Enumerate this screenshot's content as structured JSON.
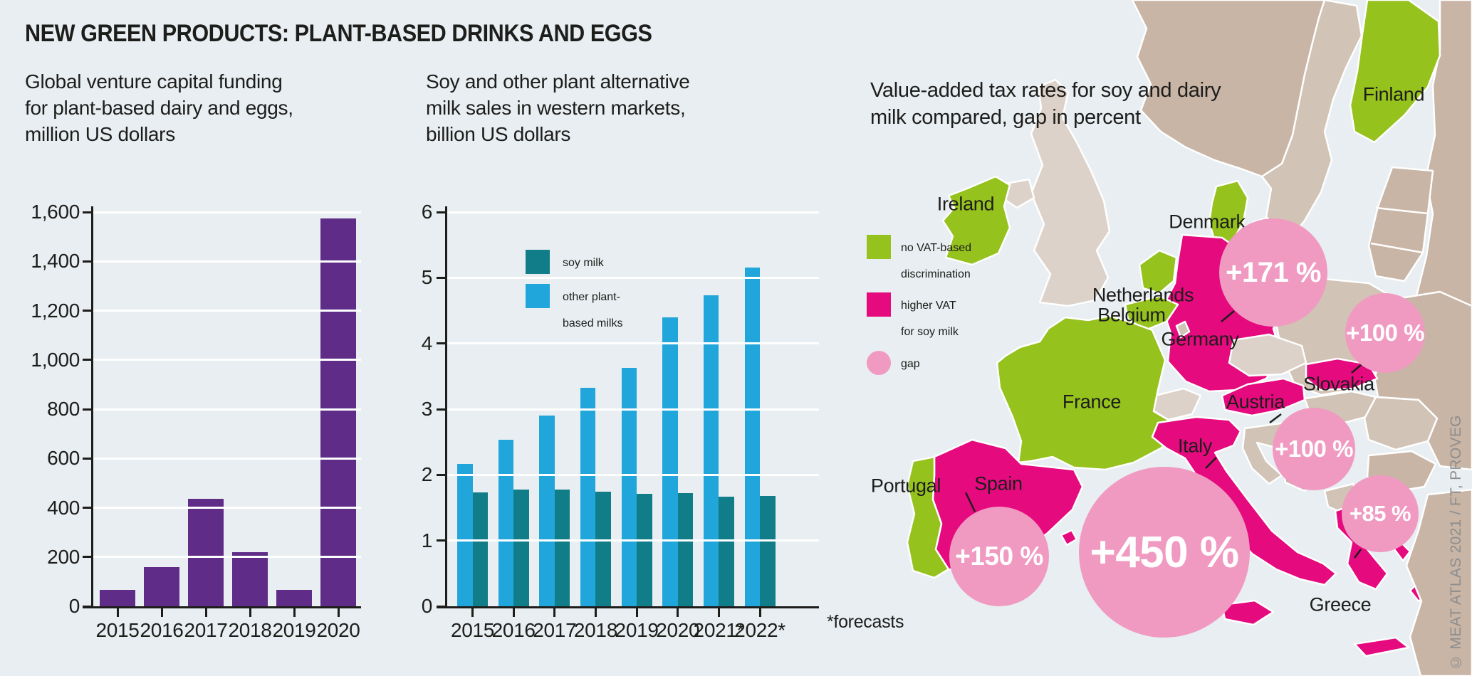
{
  "title": "NEW GREEN PRODUCTS: PLANT-BASED DRINKS AND EGGS",
  "footnote": "*forecasts",
  "credit": "© MEAT ATLAS 2021 / FT, PROVEG",
  "chart_data": [
    {
      "type": "bar",
      "title": "Global venture capital funding for plant-based dairy and eggs, million US dollars",
      "title_lines": [
        "Global venture capital funding",
        "for plant-based dairy and eggs,",
        "million US dollars"
      ],
      "categories": [
        "2015",
        "2016",
        "2017",
        "2018",
        "2019",
        "2020"
      ],
      "values": [
        65,
        160,
        435,
        220,
        65,
        1575
      ],
      "ylabel": "million US dollars",
      "ylim": [
        0,
        1600
      ],
      "yticks": [
        "0",
        "200",
        "400",
        "600",
        "800",
        "1,000",
        "1,200",
        "1,400",
        "1,600"
      ],
      "bar_color": "#5f2c87",
      "grid": "white horizontal gridlines",
      "legend_position": "none"
    },
    {
      "type": "bar",
      "title": "Soy and other plant alternative milk sales in western markets, billion US dollars",
      "title_lines": [
        "Soy and other plant alternative",
        "milk sales in western markets,",
        "billion US dollars"
      ],
      "categories": [
        "2015",
        "2016",
        "2017",
        "2018",
        "2019",
        "2020",
        "2021*",
        "2022*"
      ],
      "series": [
        {
          "name": "other plant-based milks",
          "color": "#20a6da",
          "values": [
            2.17,
            2.53,
            2.9,
            3.33,
            3.63,
            4.4,
            4.73,
            5.15
          ]
        },
        {
          "name": "soy milk",
          "color": "#117d89",
          "values": [
            1.73,
            1.78,
            1.78,
            1.74,
            1.71,
            1.72,
            1.67,
            1.68
          ]
        }
      ],
      "ylim": [
        0,
        6
      ],
      "yticks": [
        "0",
        "1",
        "2",
        "3",
        "4",
        "5",
        "6"
      ],
      "grid": "white horizontal gridlines",
      "legend": [
        {
          "swatch_color": "#117d89",
          "lines": [
            "soy milk"
          ]
        },
        {
          "swatch_color": "#20a6da",
          "lines": [
            "other plant-",
            "based milks"
          ]
        }
      ],
      "footnote": "*forecasts"
    }
  ],
  "map": {
    "title_lines": [
      "Value-added tax rates for soy and dairy",
      "milk compared, gap in percent"
    ],
    "legend": [
      {
        "swatch": "green-square",
        "lines": [
          "no VAT-based",
          "discrimination"
        ]
      },
      {
        "swatch": "magenta-square",
        "lines": [
          "higher VAT",
          "for soy milk"
        ]
      },
      {
        "swatch": "pink-circle",
        "lines": [
          "gap"
        ]
      }
    ],
    "colors": {
      "no_vat_discrimination": "#96c21e",
      "higher_vat_soy": "#e50a7e",
      "gap_circle": "#f09ac2",
      "land_dark": "#c8b5a6",
      "land_medium": "#d1c3b5",
      "land_light": "#dcd2c9",
      "background": "#e8eef1"
    },
    "countries": [
      {
        "name": "Finland",
        "status": "no VAT-based discrimination"
      },
      {
        "name": "Ireland",
        "status": "no VAT-based discrimination"
      },
      {
        "name": "Denmark",
        "status": "no VAT-based discrimination"
      },
      {
        "name": "Netherlands",
        "status": "no VAT-based discrimination"
      },
      {
        "name": "Belgium",
        "status": "no VAT-based discrimination"
      },
      {
        "name": "France",
        "status": "no VAT-based discrimination"
      },
      {
        "name": "Portugal",
        "status": "no VAT-based discrimination"
      },
      {
        "name": "Germany",
        "status": "higher VAT for soy milk",
        "gap": "+171 %"
      },
      {
        "name": "Slovakia",
        "status": "higher VAT for soy milk",
        "gap": "+100 %"
      },
      {
        "name": "Austria",
        "status": "higher VAT for soy milk",
        "gap": "+100 %"
      },
      {
        "name": "Greece",
        "status": "higher VAT for soy milk",
        "gap": "+85 %"
      },
      {
        "name": "Spain",
        "status": "higher VAT for soy milk",
        "gap": "+150 %"
      },
      {
        "name": "Italy",
        "status": "higher VAT for soy milk",
        "gap": "+450 %"
      }
    ],
    "gaps": [
      {
        "country": "Germany",
        "label": "+171 %"
      },
      {
        "country": "Slovakia",
        "label": "+100 %"
      },
      {
        "country": "Austria",
        "label": "+100 %"
      },
      {
        "country": "Greece",
        "label": "+85 %"
      },
      {
        "country": "Spain",
        "label": "+150 %"
      },
      {
        "country": "Italy",
        "label": "+450 %"
      }
    ]
  }
}
